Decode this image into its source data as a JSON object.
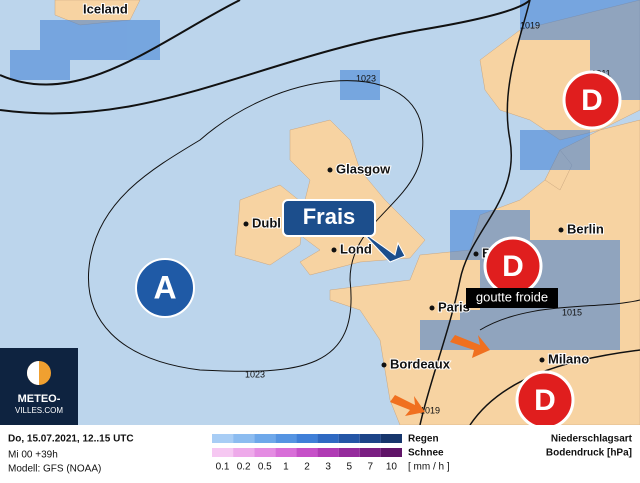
{
  "map": {
    "cities": [
      "Iceland",
      "Glasgow",
      "Dubl",
      "Lond",
      "Br",
      "Paris",
      "Berlin",
      "Milano",
      "Bordeaux"
    ],
    "isobars": [
      "1019",
      "1023",
      "1023",
      "1015",
      "1019",
      "1011"
    ],
    "annotations": {
      "frais": "Frais",
      "goutte": "goutte froide"
    },
    "pressure_centers": [
      "A",
      "D",
      "D",
      "D"
    ]
  },
  "logo": {
    "line1": "METEO-",
    "line2": "VILLES.COM"
  },
  "footer": {
    "date": "Do, 15.07.2021, 12..15 UTC",
    "run": "Mi 00 +39h",
    "model": "Modell: GFS (NOAA)",
    "rain": "Regen",
    "snow": "Schnee",
    "unit": "[ mm / h ]",
    "scale": [
      0.1,
      0.2,
      0.5,
      1,
      2,
      3,
      5,
      7,
      10
    ],
    "type_label": "Niederschlagsart",
    "pressure_label": "Bodendruck [hPa]"
  }
}
